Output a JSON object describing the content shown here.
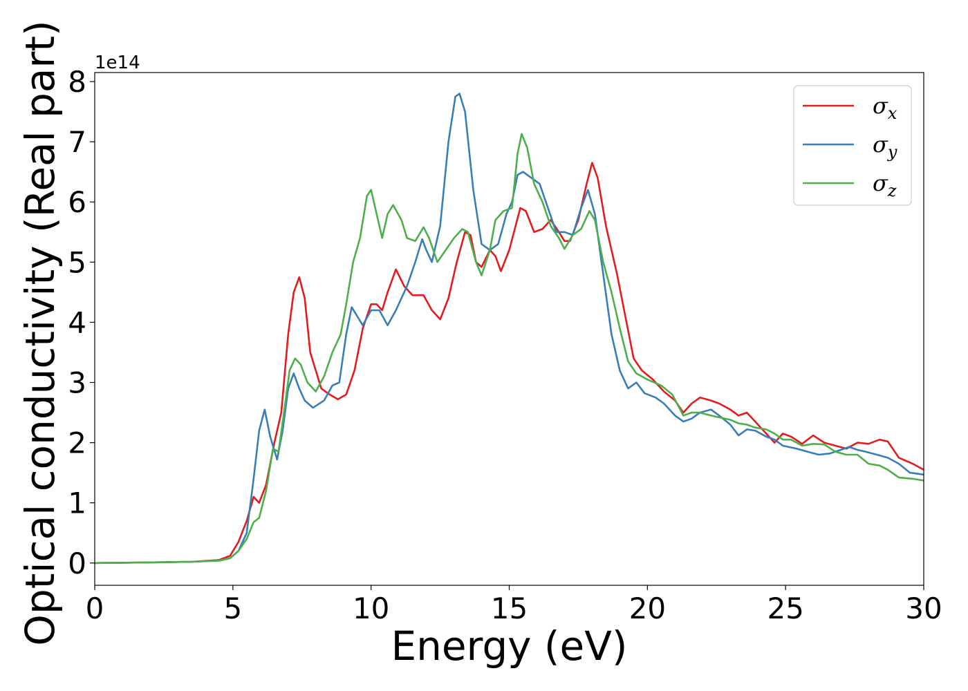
{
  "chart_data": {
    "type": "line",
    "title": "",
    "xlabel": "Energy (eV)",
    "ylabel": "Optical conductivity (Real part)",
    "y_offset_label": "1e14",
    "xlim": [
      0,
      30
    ],
    "ylim": [
      -0.37,
      8.15
    ],
    "xticks": [
      0,
      5,
      10,
      15,
      20,
      25,
      30
    ],
    "yticks": [
      0,
      1,
      2,
      3,
      4,
      5,
      6,
      7,
      8
    ],
    "grid": false,
    "legend_position": "top-right",
    "series": [
      {
        "name": "σx",
        "sym": "σ",
        "sub": "x",
        "color": "#e41a1c",
        "points": [
          [
            0,
            0.0
          ],
          [
            2,
            0.01
          ],
          [
            3.5,
            0.02
          ],
          [
            4.5,
            0.05
          ],
          [
            4.9,
            0.12
          ],
          [
            5.2,
            0.35
          ],
          [
            5.5,
            0.7
          ],
          [
            5.75,
            1.1
          ],
          [
            5.95,
            1.0
          ],
          [
            6.2,
            1.3
          ],
          [
            6.5,
            2.0
          ],
          [
            6.75,
            2.5
          ],
          [
            7.0,
            3.8
          ],
          [
            7.2,
            4.5
          ],
          [
            7.4,
            4.75
          ],
          [
            7.6,
            4.4
          ],
          [
            7.8,
            3.5
          ],
          [
            8.2,
            2.9
          ],
          [
            8.5,
            2.8
          ],
          [
            8.8,
            2.72
          ],
          [
            9.1,
            2.8
          ],
          [
            9.4,
            3.2
          ],
          [
            9.7,
            3.9
          ],
          [
            10.0,
            4.3
          ],
          [
            10.2,
            4.3
          ],
          [
            10.4,
            4.2
          ],
          [
            10.6,
            4.5
          ],
          [
            10.9,
            4.88
          ],
          [
            11.2,
            4.6
          ],
          [
            11.5,
            4.45
          ],
          [
            11.9,
            4.45
          ],
          [
            12.2,
            4.2
          ],
          [
            12.5,
            4.05
          ],
          [
            12.8,
            4.4
          ],
          [
            13.1,
            5.0
          ],
          [
            13.4,
            5.5
          ],
          [
            13.6,
            5.45
          ],
          [
            13.8,
            5.0
          ],
          [
            14.0,
            4.92
          ],
          [
            14.3,
            5.2
          ],
          [
            14.5,
            5.1
          ],
          [
            14.7,
            4.85
          ],
          [
            15.0,
            5.2
          ],
          [
            15.2,
            5.55
          ],
          [
            15.4,
            5.9
          ],
          [
            15.6,
            5.85
          ],
          [
            15.9,
            5.5
          ],
          [
            16.2,
            5.55
          ],
          [
            16.5,
            5.7
          ],
          [
            16.8,
            5.5
          ],
          [
            17.0,
            5.35
          ],
          [
            17.2,
            5.35
          ],
          [
            17.5,
            5.7
          ],
          [
            17.8,
            6.3
          ],
          [
            18.0,
            6.65
          ],
          [
            18.2,
            6.4
          ],
          [
            18.5,
            5.6
          ],
          [
            18.9,
            4.8
          ],
          [
            19.2,
            4.1
          ],
          [
            19.5,
            3.4
          ],
          [
            19.8,
            3.2
          ],
          [
            20.2,
            3.05
          ],
          [
            20.6,
            2.85
          ],
          [
            21.0,
            2.7
          ],
          [
            21.3,
            2.5
          ],
          [
            21.6,
            2.65
          ],
          [
            21.9,
            2.75
          ],
          [
            22.3,
            2.7
          ],
          [
            22.6,
            2.65
          ],
          [
            23.0,
            2.55
          ],
          [
            23.3,
            2.45
          ],
          [
            23.6,
            2.5
          ],
          [
            23.9,
            2.35
          ],
          [
            24.3,
            2.15
          ],
          [
            24.6,
            2.0
          ],
          [
            24.9,
            2.15
          ],
          [
            25.2,
            2.1
          ],
          [
            25.6,
            1.98
          ],
          [
            26.0,
            2.12
          ],
          [
            26.4,
            2.0
          ],
          [
            26.8,
            1.95
          ],
          [
            27.2,
            1.9
          ],
          [
            27.6,
            2.0
          ],
          [
            28.0,
            1.98
          ],
          [
            28.4,
            2.05
          ],
          [
            28.7,
            2.02
          ],
          [
            29.1,
            1.75
          ],
          [
            29.6,
            1.65
          ],
          [
            30.0,
            1.55
          ]
        ]
      },
      {
        "name": "σy",
        "sym": "σ",
        "sub": "y",
        "color": "#377eb8",
        "points": [
          [
            0,
            0.0
          ],
          [
            2,
            0.01
          ],
          [
            3.5,
            0.02
          ],
          [
            4.5,
            0.04
          ],
          [
            4.9,
            0.08
          ],
          [
            5.2,
            0.2
          ],
          [
            5.5,
            0.5
          ],
          [
            5.75,
            1.4
          ],
          [
            5.95,
            2.2
          ],
          [
            6.15,
            2.55
          ],
          [
            6.35,
            2.1
          ],
          [
            6.6,
            1.72
          ],
          [
            6.8,
            2.2
          ],
          [
            7.0,
            2.9
          ],
          [
            7.2,
            3.15
          ],
          [
            7.4,
            2.9
          ],
          [
            7.6,
            2.7
          ],
          [
            7.9,
            2.58
          ],
          [
            8.3,
            2.7
          ],
          [
            8.6,
            2.95
          ],
          [
            8.85,
            3.0
          ],
          [
            9.1,
            3.8
          ],
          [
            9.3,
            4.25
          ],
          [
            9.5,
            4.1
          ],
          [
            9.7,
            3.95
          ],
          [
            10.0,
            4.2
          ],
          [
            10.3,
            4.2
          ],
          [
            10.6,
            3.95
          ],
          [
            10.9,
            4.2
          ],
          [
            11.3,
            4.6
          ],
          [
            11.6,
            5.0
          ],
          [
            11.85,
            5.38
          ],
          [
            12.0,
            5.2
          ],
          [
            12.2,
            5.0
          ],
          [
            12.5,
            5.6
          ],
          [
            12.8,
            7.0
          ],
          [
            13.05,
            7.75
          ],
          [
            13.2,
            7.8
          ],
          [
            13.4,
            7.5
          ],
          [
            13.7,
            6.2
          ],
          [
            14.0,
            5.3
          ],
          [
            14.3,
            5.2
          ],
          [
            14.6,
            5.3
          ],
          [
            14.9,
            5.8
          ],
          [
            15.1,
            6.0
          ],
          [
            15.3,
            6.45
          ],
          [
            15.5,
            6.5
          ],
          [
            15.8,
            6.4
          ],
          [
            16.1,
            6.3
          ],
          [
            16.4,
            5.9
          ],
          [
            16.7,
            5.5
          ],
          [
            17.0,
            5.5
          ],
          [
            17.3,
            5.45
          ],
          [
            17.6,
            5.9
          ],
          [
            17.85,
            6.2
          ],
          [
            18.1,
            5.8
          ],
          [
            18.4,
            4.8
          ],
          [
            18.7,
            3.8
          ],
          [
            19.0,
            3.2
          ],
          [
            19.3,
            2.9
          ],
          [
            19.6,
            3.0
          ],
          [
            19.9,
            2.82
          ],
          [
            20.3,
            2.75
          ],
          [
            20.6,
            2.65
          ],
          [
            21.0,
            2.45
          ],
          [
            21.3,
            2.35
          ],
          [
            21.6,
            2.4
          ],
          [
            21.9,
            2.5
          ],
          [
            22.3,
            2.55
          ],
          [
            22.6,
            2.45
          ],
          [
            23.0,
            2.3
          ],
          [
            23.3,
            2.12
          ],
          [
            23.6,
            2.22
          ],
          [
            23.9,
            2.2
          ],
          [
            24.3,
            2.1
          ],
          [
            24.6,
            2.05
          ],
          [
            24.9,
            1.95
          ],
          [
            25.4,
            1.9
          ],
          [
            25.8,
            1.85
          ],
          [
            26.2,
            1.8
          ],
          [
            26.6,
            1.82
          ],
          [
            27.0,
            1.88
          ],
          [
            27.3,
            1.93
          ],
          [
            27.6,
            1.88
          ],
          [
            27.9,
            1.85
          ],
          [
            28.3,
            1.8
          ],
          [
            28.7,
            1.75
          ],
          [
            29.1,
            1.65
          ],
          [
            29.5,
            1.5
          ],
          [
            30.0,
            1.47
          ]
        ]
      },
      {
        "name": "σz",
        "sym": "σ",
        "sub": "z",
        "color": "#4daf4a",
        "points": [
          [
            0,
            0.0
          ],
          [
            2,
            0.01
          ],
          [
            3.5,
            0.02
          ],
          [
            4.5,
            0.04
          ],
          [
            4.9,
            0.08
          ],
          [
            5.2,
            0.2
          ],
          [
            5.5,
            0.4
          ],
          [
            5.75,
            0.68
          ],
          [
            5.95,
            0.75
          ],
          [
            6.2,
            1.2
          ],
          [
            6.45,
            1.9
          ],
          [
            6.65,
            1.85
          ],
          [
            6.85,
            2.5
          ],
          [
            7.05,
            3.2
          ],
          [
            7.25,
            3.4
          ],
          [
            7.45,
            3.3
          ],
          [
            7.7,
            3.0
          ],
          [
            8.0,
            2.85
          ],
          [
            8.3,
            3.1
          ],
          [
            8.6,
            3.5
          ],
          [
            8.9,
            3.8
          ],
          [
            9.1,
            4.3
          ],
          [
            9.35,
            5.0
          ],
          [
            9.6,
            5.4
          ],
          [
            9.85,
            6.1
          ],
          [
            10.0,
            6.2
          ],
          [
            10.2,
            5.8
          ],
          [
            10.4,
            5.4
          ],
          [
            10.6,
            5.8
          ],
          [
            10.8,
            5.95
          ],
          [
            11.1,
            5.7
          ],
          [
            11.3,
            5.4
          ],
          [
            11.6,
            5.35
          ],
          [
            11.9,
            5.58
          ],
          [
            12.1,
            5.4
          ],
          [
            12.4,
            5.0
          ],
          [
            12.7,
            5.2
          ],
          [
            13.0,
            5.4
          ],
          [
            13.3,
            5.55
          ],
          [
            13.5,
            5.5
          ],
          [
            13.8,
            5.0
          ],
          [
            14.0,
            4.78
          ],
          [
            14.3,
            5.2
          ],
          [
            14.5,
            5.7
          ],
          [
            14.8,
            5.85
          ],
          [
            15.1,
            5.9
          ],
          [
            15.3,
            6.8
          ],
          [
            15.45,
            7.13
          ],
          [
            15.65,
            6.9
          ],
          [
            15.9,
            6.3
          ],
          [
            16.2,
            6.0
          ],
          [
            16.5,
            5.6
          ],
          [
            16.8,
            5.4
          ],
          [
            17.0,
            5.22
          ],
          [
            17.3,
            5.45
          ],
          [
            17.6,
            5.55
          ],
          [
            17.9,
            5.85
          ],
          [
            18.1,
            5.7
          ],
          [
            18.4,
            5.0
          ],
          [
            18.7,
            4.5
          ],
          [
            19.0,
            3.9
          ],
          [
            19.3,
            3.35
          ],
          [
            19.6,
            3.15
          ],
          [
            20.0,
            3.05
          ],
          [
            20.5,
            2.95
          ],
          [
            20.9,
            2.8
          ],
          [
            21.3,
            2.45
          ],
          [
            21.6,
            2.5
          ],
          [
            21.9,
            2.5
          ],
          [
            22.3,
            2.45
          ],
          [
            22.6,
            2.42
          ],
          [
            23.0,
            2.38
          ],
          [
            23.3,
            2.32
          ],
          [
            23.6,
            2.3
          ],
          [
            23.9,
            2.25
          ],
          [
            24.3,
            2.22
          ],
          [
            24.6,
            2.15
          ],
          [
            24.9,
            2.05
          ],
          [
            25.2,
            2.05
          ],
          [
            25.6,
            1.95
          ],
          [
            26.0,
            1.98
          ],
          [
            26.4,
            1.97
          ],
          [
            26.8,
            1.85
          ],
          [
            27.2,
            1.8
          ],
          [
            27.6,
            1.8
          ],
          [
            28.0,
            1.65
          ],
          [
            28.4,
            1.62
          ],
          [
            28.7,
            1.55
          ],
          [
            29.1,
            1.42
          ],
          [
            29.6,
            1.4
          ],
          [
            30.0,
            1.37
          ]
        ]
      }
    ]
  }
}
